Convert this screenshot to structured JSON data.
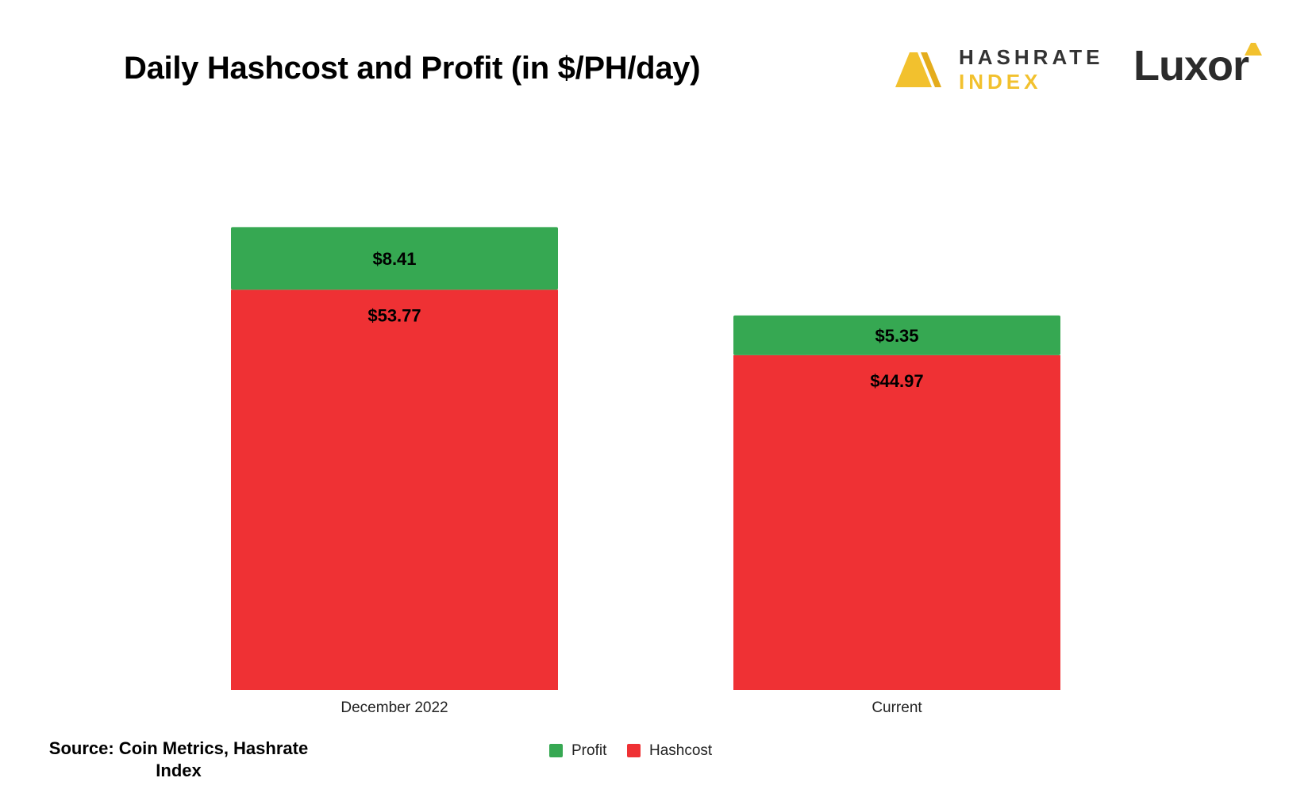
{
  "colors": {
    "profit": "#36a852",
    "hashcost": "#ef3134",
    "gold": "#f2c12e",
    "text": "#000000"
  },
  "header": {
    "title": "Daily Hashcost and Profit (in $/PH/day)"
  },
  "logos": {
    "hashrate_index": {
      "line1": "HASHRATE",
      "line2": "INDEX",
      "icon": "hashrate-index-triangle-icon"
    },
    "luxor": {
      "text": "Luxor",
      "icon": "luxor-triangle-icon"
    }
  },
  "chart_data": {
    "type": "bar",
    "stacked": true,
    "title": "Daily Hashcost and Profit (in $/PH/day)",
    "xlabel": "",
    "ylabel": "",
    "ylim": [
      0,
      70
    ],
    "grid": false,
    "legend_position": "bottom",
    "categories": [
      "December 2022",
      "Current"
    ],
    "series": [
      {
        "name": "Hashcost",
        "color": "#ef3134",
        "values": [
          53.77,
          44.97
        ],
        "labels": [
          "$53.77",
          "$44.97"
        ]
      },
      {
        "name": "Profit",
        "color": "#36a852",
        "values": [
          8.41,
          5.35
        ],
        "labels": [
          "$8.41",
          "$5.35"
        ]
      }
    ]
  },
  "legend": [
    {
      "label": "Profit",
      "color": "#36a852"
    },
    {
      "label": "Hashcost",
      "color": "#ef3134"
    }
  ],
  "footer": {
    "source": "Source: Coin Metrics, Hashrate Index"
  }
}
